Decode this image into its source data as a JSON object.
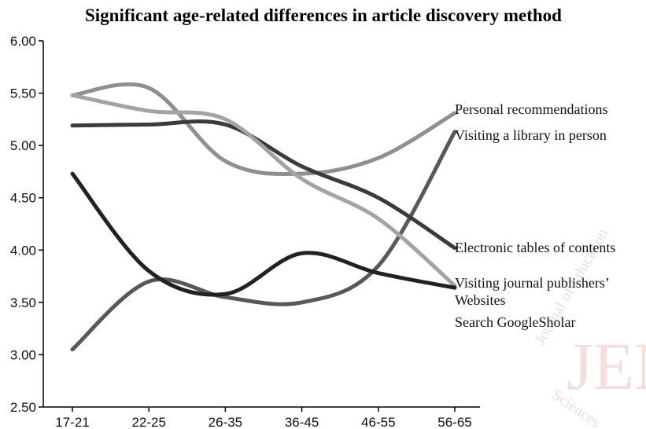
{
  "chart_data": {
    "type": "line",
    "title": "Significant age-related differences in article discovery method",
    "xlabel": "",
    "ylabel": "",
    "categories": [
      "17-21",
      "22-25",
      "26-35",
      "36-45",
      "46-55",
      "56-65"
    ],
    "ylim": [
      2.5,
      6.0
    ],
    "yticks": [
      "2.50",
      "3.00",
      "3.50",
      "4.00",
      "4.50",
      "5.00",
      "5.50",
      "6.00"
    ],
    "grid": false,
    "legend": "line-end labels (right)",
    "series_labels": [
      "Personal recommendations",
      "Visiting a library in person",
      "Electronic tables of contents",
      "Visiting journal publishers’ Websites",
      "Search GoogleSholar"
    ],
    "series": [
      {
        "values": [
          5.48,
          5.55,
          4.85,
          4.73,
          4.88,
          5.31
        ],
        "color": "#8f8f8f"
      },
      {
        "values": [
          3.05,
          3.7,
          3.55,
          3.5,
          3.85,
          5.13
        ],
        "color": "#585858"
      },
      {
        "values": [
          5.19,
          5.2,
          5.2,
          4.8,
          4.5,
          4.02
        ],
        "color": "#3b3b3b"
      },
      {
        "values": [
          5.48,
          5.33,
          5.25,
          4.68,
          4.3,
          3.66
        ],
        "color": "#a3a3a3"
      },
      {
        "values": [
          4.73,
          3.8,
          3.58,
          3.97,
          3.78,
          3.64
        ],
        "color": "#222222"
      }
    ]
  },
  "watermark": {
    "text": "JEM",
    "arc_text": "Journal of Education",
    "arc_text2": "Sciences"
  }
}
